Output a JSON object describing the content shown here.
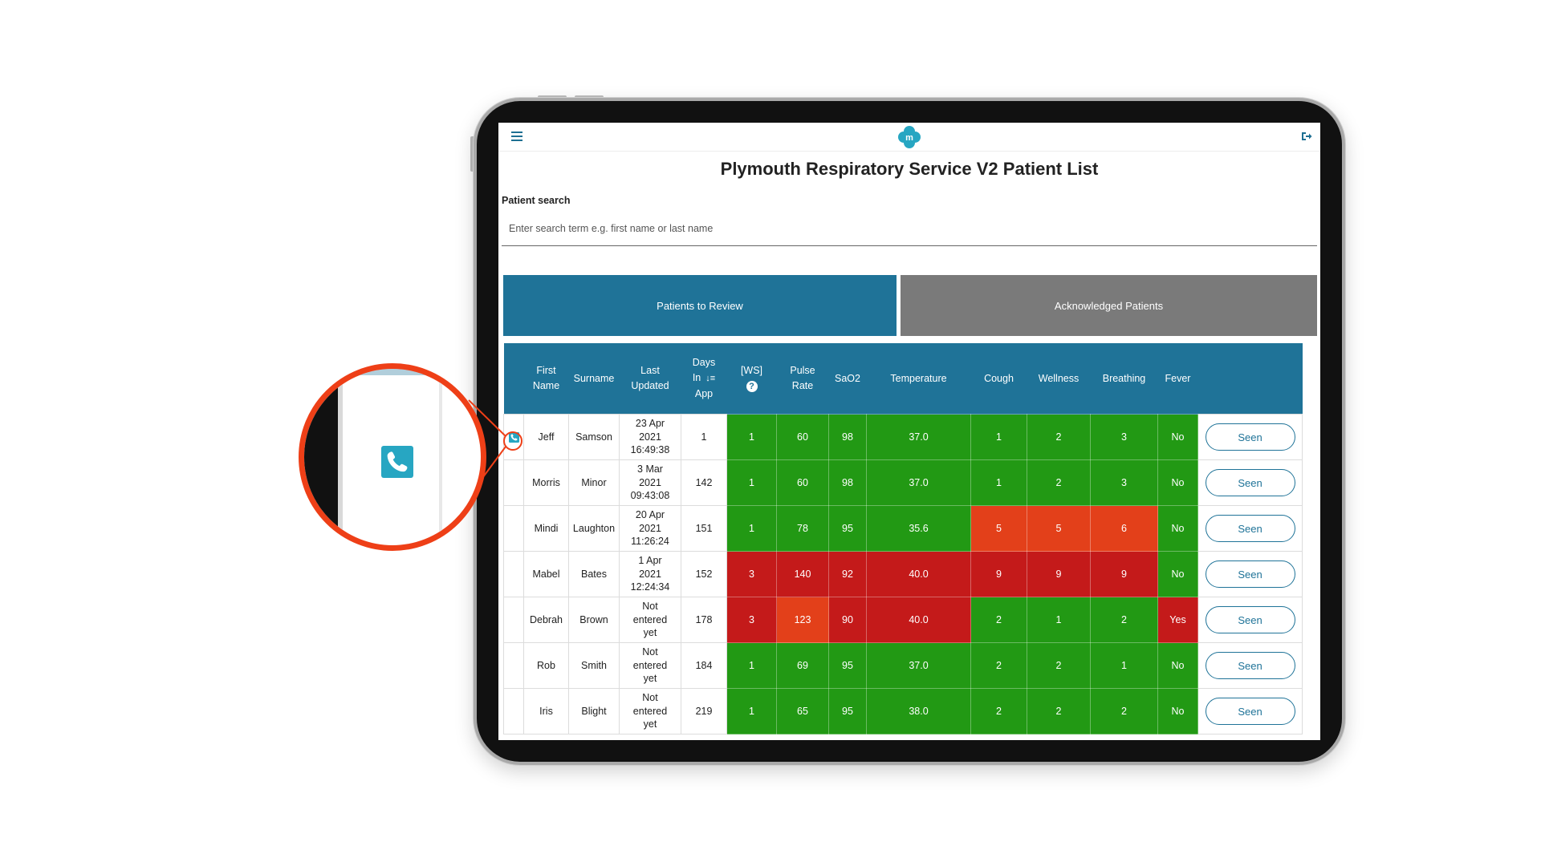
{
  "app": {
    "title": "Plymouth Respiratory Service V2 Patient List",
    "logo_letter": "m",
    "icons": {
      "menu": "hamburger-icon",
      "logo": "medical-cross-logo",
      "logout": "logout-icon",
      "call": "phone-icon",
      "help": "question-icon"
    }
  },
  "search": {
    "label": "Patient search",
    "placeholder": "Enter search term e.g. first name or last name",
    "value": ""
  },
  "tabs": {
    "review": "Patients to Review",
    "acknowledged": "Acknowledged Patients"
  },
  "table": {
    "headers": {
      "first_name": [
        "First",
        "Name"
      ],
      "surname": "Surname",
      "last_updated": [
        "Last",
        "Updated"
      ],
      "days_in_app": [
        "Days",
        "In",
        "App"
      ],
      "ws": "[WS]",
      "ws_help": "?",
      "pulse_rate": [
        "Pulse",
        "Rate"
      ],
      "sao2": "SaO2",
      "temperature": "Temperature",
      "cough": "Cough",
      "wellness": "Wellness",
      "breathing": "Breathing",
      "fever": "Fever"
    },
    "status_colors": {
      "green": "#229914",
      "orange": "#e3401a",
      "red": "#c41a1a",
      "header": "#1f7398",
      "tab_inactive": "#7a7a7a",
      "callout": "#ee3f17"
    },
    "seen_label": "Seen",
    "rows": [
      {
        "first": "Jeff",
        "surname": "Samson",
        "updated": [
          "23 Apr",
          "2021",
          "16:49:38"
        ],
        "days": "1",
        "call": true,
        "vitals": [
          [
            "1",
            "g"
          ],
          [
            "60",
            "g"
          ],
          [
            "98",
            "g"
          ],
          [
            "37.0",
            "g"
          ],
          [
            "1",
            "g"
          ],
          [
            "2",
            "g"
          ],
          [
            "3",
            "g"
          ],
          [
            "No",
            "g"
          ]
        ]
      },
      {
        "first": "Morris",
        "surname": "Minor",
        "updated": [
          "3 Mar",
          "2021",
          "09:43:08"
        ],
        "days": "142",
        "vitals": [
          [
            "1",
            "g"
          ],
          [
            "60",
            "g"
          ],
          [
            "98",
            "g"
          ],
          [
            "37.0",
            "g"
          ],
          [
            "1",
            "g"
          ],
          [
            "2",
            "g"
          ],
          [
            "3",
            "g"
          ],
          [
            "No",
            "g"
          ]
        ]
      },
      {
        "first": "Mindi",
        "surname": "Laughton",
        "updated": [
          "20 Apr",
          "2021",
          "11:26:24"
        ],
        "days": "151",
        "vitals": [
          [
            "1",
            "g"
          ],
          [
            "78",
            "g"
          ],
          [
            "95",
            "g"
          ],
          [
            "35.6",
            "g"
          ],
          [
            "5",
            "o"
          ],
          [
            "5",
            "o"
          ],
          [
            "6",
            "o"
          ],
          [
            "No",
            "g"
          ]
        ]
      },
      {
        "first": "Mabel",
        "surname": "Bates",
        "updated": [
          "1 Apr",
          "2021",
          "12:24:34"
        ],
        "days": "152",
        "vitals": [
          [
            "3",
            "r"
          ],
          [
            "140",
            "r"
          ],
          [
            "92",
            "r"
          ],
          [
            "40.0",
            "r"
          ],
          [
            "9",
            "r"
          ],
          [
            "9",
            "r"
          ],
          [
            "9",
            "r"
          ],
          [
            "No",
            "g"
          ]
        ]
      },
      {
        "first": "Debrah",
        "surname": "Brown",
        "updated": [
          "Not",
          "entered",
          "yet"
        ],
        "days": "178",
        "vitals": [
          [
            "3",
            "r"
          ],
          [
            "123",
            "o"
          ],
          [
            "90",
            "r"
          ],
          [
            "40.0",
            "r"
          ],
          [
            "2",
            "g"
          ],
          [
            "1",
            "g"
          ],
          [
            "2",
            "g"
          ],
          [
            "Yes",
            "r"
          ]
        ]
      },
      {
        "first": "Rob",
        "surname": "Smith",
        "updated": [
          "Not",
          "entered",
          "yet"
        ],
        "days": "184",
        "vitals": [
          [
            "1",
            "g"
          ],
          [
            "69",
            "g"
          ],
          [
            "95",
            "g"
          ],
          [
            "37.0",
            "g"
          ],
          [
            "2",
            "g"
          ],
          [
            "2",
            "g"
          ],
          [
            "1",
            "g"
          ],
          [
            "No",
            "g"
          ]
        ]
      },
      {
        "first": "Iris",
        "surname": "Blight",
        "updated": [
          "Not",
          "entered",
          "yet"
        ],
        "days": "219",
        "vitals": [
          [
            "1",
            "g"
          ],
          [
            "65",
            "g"
          ],
          [
            "95",
            "g"
          ],
          [
            "38.0",
            "g"
          ],
          [
            "2",
            "g"
          ],
          [
            "2",
            "g"
          ],
          [
            "2",
            "g"
          ],
          [
            "No",
            "g"
          ]
        ]
      }
    ]
  }
}
